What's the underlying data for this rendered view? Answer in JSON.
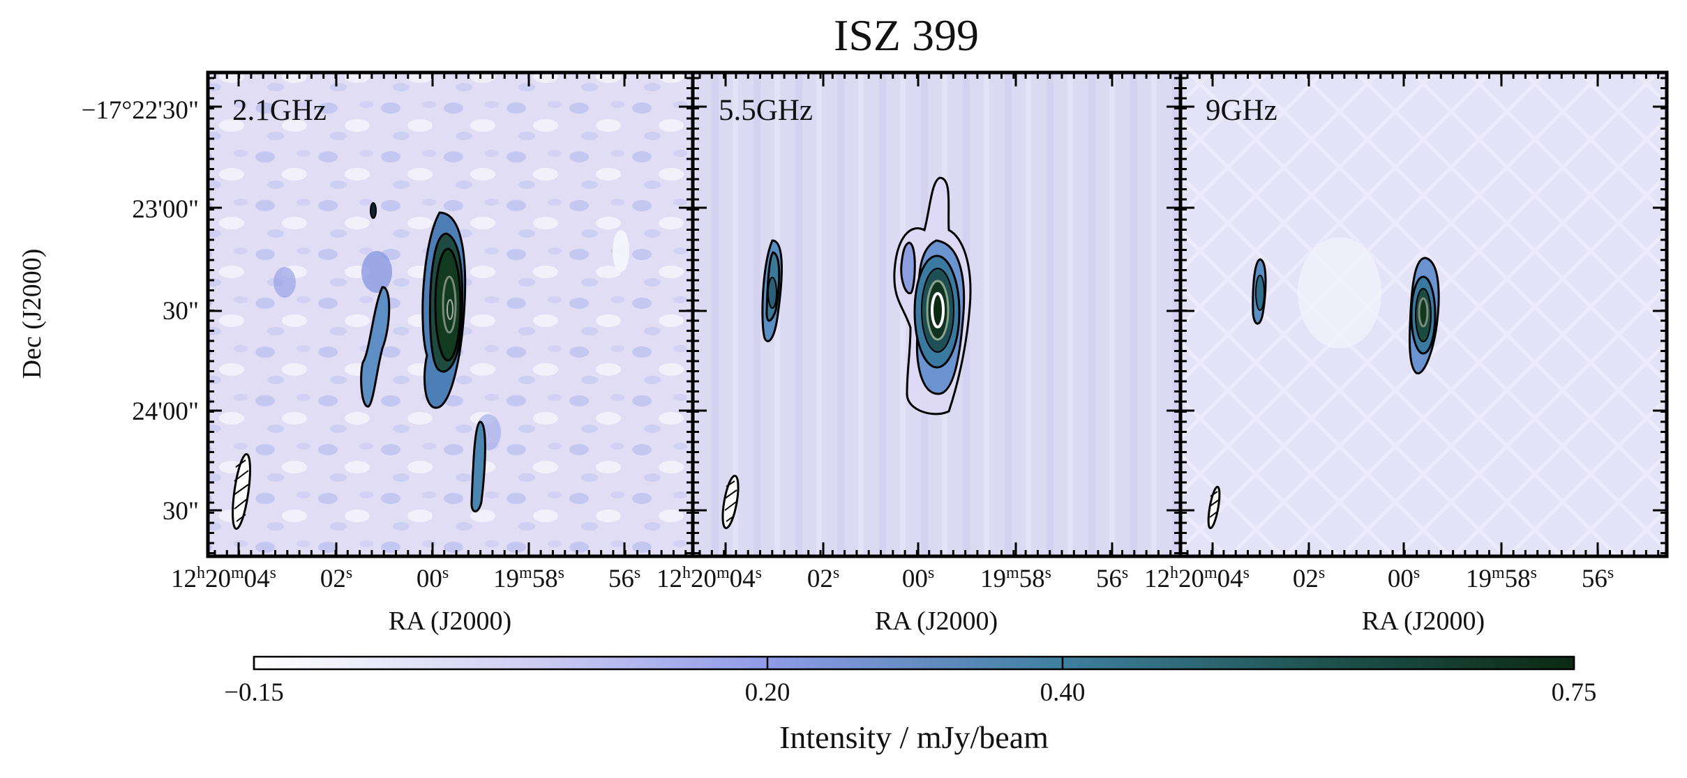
{
  "figure": {
    "title": "ISZ 399",
    "y_label": "Dec (J2000)",
    "x_label": "RA (J2000)"
  },
  "dec_ticks": [
    "−17°22'30\"",
    "23'00\"",
    "30\"",
    "24'00\"",
    "30\""
  ],
  "ra_ticks": [
    {
      "h": "12",
      "m": "20",
      "s": "04"
    },
    {
      "s": "02"
    },
    {
      "s": "00"
    },
    {
      "m": "19",
      "s": "58"
    },
    {
      "s": "56"
    }
  ],
  "panels": [
    {
      "freq": "2.1GHz"
    },
    {
      "freq": "5.5GHz"
    },
    {
      "freq": "9GHz"
    }
  ],
  "colorbar": {
    "label": "Intensity / mJy/beam",
    "ticks": [
      "−0.15",
      "0.20",
      "0.40",
      "0.75"
    ],
    "min": -0.15,
    "max": 0.75,
    "tick_values": [
      -0.15,
      0.2,
      0.4,
      0.75
    ],
    "colors": [
      "#ffffff",
      "#a8a8e8",
      "#6f8fd8",
      "#3a7f9a",
      "#17304f",
      "#0d2a0d"
    ]
  },
  "chart_data": {
    "type": "heatmap",
    "title": "ISZ 399",
    "xlabel": "RA (J2000)",
    "ylabel": "Dec (J2000)",
    "panels": [
      "2.1GHz",
      "5.5GHz",
      "9GHz"
    ],
    "colorbar_label": "Intensity / mJy/beam",
    "colorbar_range": [
      -0.15,
      0.75
    ],
    "colorbar_ticks": [
      -0.15,
      0.2,
      0.4,
      0.75
    ]
  }
}
